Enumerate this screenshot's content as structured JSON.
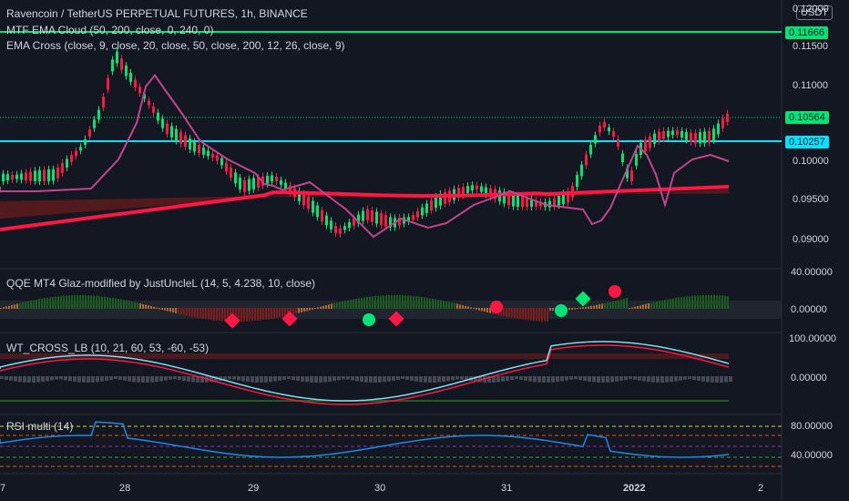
{
  "header": {
    "title": "Ravencoin / TetherUS PERPETUAL FUTURES, 1h, BINANCE",
    "indicator_1": "MTF EMA Cloud (50, 200, close, 0, 240, 0)",
    "indicator_2": "EMA Cross (close, 9, close, 20, close, 50, close, 200, 12, 26, close, 9)",
    "currency": "USDT"
  },
  "price_axis": {
    "ticks": [
      "0.12000",
      "0.11500",
      "0.11000",
      "0.10500",
      "0.10000",
      "0.09500",
      "0.09000"
    ],
    "tag_top": "0.11666",
    "tag_last": "0.10564",
    "tag_support": "0.10257"
  },
  "qqe_panel": {
    "title": "QQE MT4 Glaz-modified by JustUncleL (14, 5, 4.238, 10, close)",
    "ticks": [
      "40.00000",
      "0.00000"
    ]
  },
  "wt_panel": {
    "title": "WT_CROSS_LB (10, 21, 60, 53, -60, -53)",
    "ticks": [
      "100.00000",
      "0.00000"
    ]
  },
  "rsi_panel": {
    "title": "RSI multi (14)",
    "ticks": [
      "80.00000",
      "40.00000"
    ]
  },
  "time_axis": {
    "labels": [
      "7",
      "28",
      "29",
      "30",
      "31",
      "2022",
      "2"
    ]
  },
  "colors": {
    "up": "#26a69a",
    "green": "#00e676",
    "red": "#ff1744",
    "cyan": "#00e5ff",
    "magenta": "#c2458c"
  },
  "icons": [
    "currency-badge"
  ]
}
